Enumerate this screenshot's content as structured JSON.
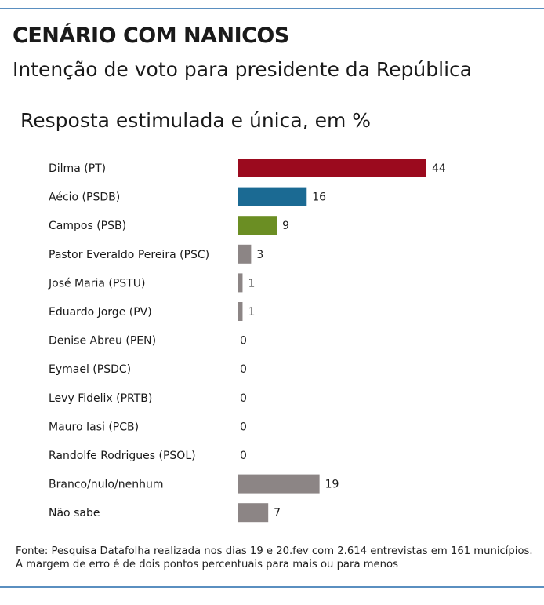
{
  "header": {
    "title": "CENÁRIO COM NANICOS",
    "subtitle": "Intenção de voto para presidente da República"
  },
  "chart_data": {
    "type": "bar",
    "orientation": "horizontal",
    "title": "Resposta estimulada e única, em %",
    "categories": [
      "Dilma (PT)",
      "Aécio (PSDB)",
      "Campos (PSB)",
      "Pastor Everaldo Pereira (PSC)",
      "José Maria (PSTU)",
      "Eduardo Jorge (PV)",
      "Denise Abreu (PEN)",
      "Eymael (PSDC)",
      "Levy Fidelix (PRTB)",
      "Mauro Iasi (PCB)",
      "Randolfe Rodrigues (PSOL)",
      "Branco/nulo/nenhum",
      "Não sabe"
    ],
    "values": [
      44,
      16,
      9,
      3,
      1,
      1,
      0,
      0,
      0,
      0,
      0,
      19,
      7
    ],
    "colors": [
      "#9b0a1e",
      "#1b6a93",
      "#6b8e23",
      "#8c8585",
      "#8c8585",
      "#8c8585",
      "#8c8585",
      "#8c8585",
      "#8c8585",
      "#8c8585",
      "#8c8585",
      "#8c8585",
      "#8c8585"
    ],
    "xlim": [
      0,
      44
    ],
    "grid": false,
    "legend": "none"
  },
  "footer": {
    "source": "Fonte: Pesquisa Datafolha realizada nos dias 19 e 20.fev com 2.614 entrevistas em 161 municípios. A margem de erro é de dois pontos percentuais para mais ou para menos"
  }
}
